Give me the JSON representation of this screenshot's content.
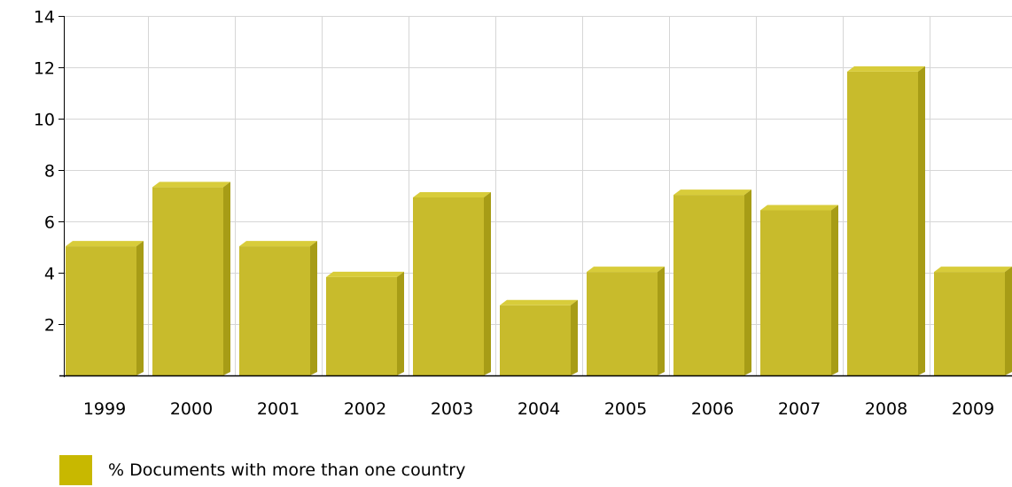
{
  "chart_data": {
    "type": "bar",
    "categories": [
      "1999",
      "2000",
      "2001",
      "2002",
      "2003",
      "2004",
      "2005",
      "2006",
      "2007",
      "2008",
      "2009"
    ],
    "series": [
      {
        "name": "% Documents with more than one country",
        "values": [
          5.1,
          7.4,
          5.1,
          3.9,
          7.0,
          2.8,
          4.1,
          7.1,
          6.5,
          11.9,
          4.1
        ]
      }
    ],
    "yticks": [
      2,
      4,
      6,
      8,
      10,
      12,
      14
    ],
    "ylim": [
      0,
      14
    ],
    "grid": true,
    "legend": "bottom-left",
    "colors": {
      "bar_front": "#c8bb2c",
      "bar_top": "#d8cc3a",
      "bar_side": "#a79c16",
      "legend_swatch": "#c8b800",
      "grid": "#d6d6d6",
      "axis": "#000000"
    }
  }
}
